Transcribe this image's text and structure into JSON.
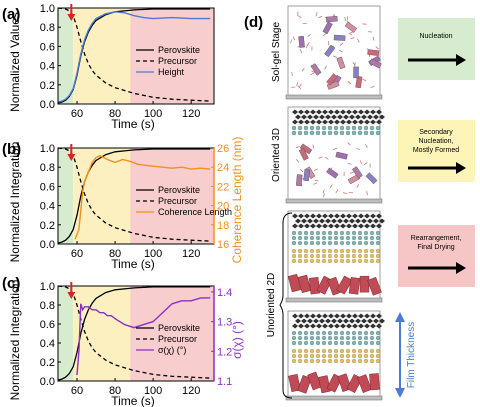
{
  "panels": {
    "a": {
      "label": "(a)",
      "xlabel": "Time (s)",
      "ylabel": "Normalized Values",
      "xticks": [
        "60",
        "80",
        "100",
        "120"
      ],
      "yticks": [
        "0.0",
        "0.2",
        "0.4",
        "0.6",
        "0.8",
        "1.0"
      ],
      "legend": [
        "Perovskite",
        "Precursor",
        "Height"
      ]
    },
    "b": {
      "label": "(b)",
      "xlabel": "Time (s)",
      "ylabel": "Normalized Integration",
      "y2label": "Coherence Length (nm)",
      "xticks": [
        "60",
        "80",
        "100",
        "120"
      ],
      "yticks": [
        "0.0",
        "0.2",
        "0.4",
        "0.6",
        "0.8",
        "1.0"
      ],
      "y2ticks": [
        "16",
        "18",
        "20",
        "22",
        "24",
        "26"
      ],
      "legend": [
        "Perovskite",
        "Precursor",
        "Coherence Length"
      ]
    },
    "c": {
      "label": "(c)",
      "xlabel": "Time (s)",
      "ylabel": "Normalized Integration",
      "y2label": "σ(χ) (°)",
      "xticks": [
        "60",
        "80",
        "100",
        "120"
      ],
      "yticks": [
        "0.0",
        "0.2",
        "0.4",
        "0.6",
        "0.8",
        "1.0"
      ],
      "y2ticks": [
        "1.1",
        "1.2",
        "1.3",
        "1.4"
      ],
      "legend": [
        "Perovskite",
        "Precursor",
        "σ(χ) (°)"
      ]
    },
    "d": {
      "label": "(d)",
      "stages": [
        {
          "side": "Sol-gel Stage",
          "box": [
            "Nucleation"
          ],
          "color": "#d7ecce"
        },
        {
          "side": "Oriented 3D",
          "box": [
            "Secondary",
            "Nucleation,",
            "Mostly Formed"
          ],
          "color": "#fdf5b8"
        },
        {
          "side": "Unoriented 2D",
          "box": [
            "Rearrangement,",
            "Final Drying"
          ],
          "color": "#f6c5c5"
        }
      ],
      "thickness_label": "Film Thickness"
    }
  },
  "colors": {
    "perovskite": "#000000",
    "height": "#4a7cd6",
    "coherence": "#f0901e",
    "sigma": "#8c2fc9",
    "marker": "#e0201c",
    "region_green": "#d7ecce",
    "region_yellow": "#fdf0c0",
    "region_red": "#f8cdcd"
  },
  "chart_data": [
    {
      "type": "line",
      "panel": "a",
      "xlim": [
        50,
        132
      ],
      "ylim": [
        0,
        1
      ],
      "marker_x": 57,
      "regions": [
        [
          50,
          58,
          "green"
        ],
        [
          58,
          88,
          "yellow"
        ],
        [
          88,
          132,
          "red"
        ]
      ],
      "series": [
        {
          "name": "Perovskite",
          "style": "solid",
          "x": [
            50,
            52,
            54,
            56,
            58,
            60,
            62,
            64,
            66,
            68,
            70,
            75,
            80,
            90,
            100,
            110,
            120,
            130
          ],
          "y": [
            0.01,
            0.02,
            0.04,
            0.08,
            0.15,
            0.3,
            0.5,
            0.65,
            0.75,
            0.82,
            0.87,
            0.93,
            0.96,
            0.98,
            0.99,
            0.99,
            0.99,
            0.99
          ]
        },
        {
          "name": "Precursor",
          "style": "dashed",
          "x": [
            50,
            54,
            56,
            58,
            60,
            62,
            64,
            66,
            68,
            70,
            75,
            80,
            90,
            100,
            110,
            120,
            130
          ],
          "y": [
            1.0,
            0.99,
            0.97,
            0.92,
            0.8,
            0.65,
            0.52,
            0.42,
            0.35,
            0.3,
            0.22,
            0.17,
            0.11,
            0.07,
            0.05,
            0.04,
            0.03
          ]
        },
        {
          "name": "Height",
          "style": "solid",
          "x": [
            50,
            52,
            54,
            56,
            58,
            60,
            62,
            64,
            66,
            68,
            70,
            75,
            80,
            85,
            90,
            95,
            100,
            110,
            120,
            130
          ],
          "y": [
            0.02,
            0.03,
            0.05,
            0.09,
            0.16,
            0.32,
            0.52,
            0.67,
            0.77,
            0.84,
            0.89,
            0.94,
            0.96,
            0.95,
            0.92,
            0.9,
            0.89,
            0.9,
            0.89,
            0.89
          ]
        }
      ]
    },
    {
      "type": "line",
      "panel": "b",
      "xlim": [
        50,
        132
      ],
      "ylim": [
        0,
        1
      ],
      "y2lim": [
        16,
        26
      ],
      "marker_x": 57,
      "regions": [
        [
          50,
          58,
          "green"
        ],
        [
          58,
          88,
          "yellow"
        ],
        [
          88,
          132,
          "red"
        ]
      ],
      "series": [
        {
          "name": "Perovskite",
          "style": "solid",
          "x": [
            50,
            52,
            54,
            56,
            58,
            60,
            62,
            64,
            66,
            68,
            70,
            75,
            80,
            90,
            100,
            110,
            120,
            130
          ],
          "y": [
            0.01,
            0.02,
            0.04,
            0.08,
            0.15,
            0.3,
            0.5,
            0.65,
            0.75,
            0.82,
            0.87,
            0.93,
            0.96,
            0.98,
            0.99,
            0.99,
            0.99,
            0.99
          ]
        },
        {
          "name": "Precursor",
          "style": "dashed",
          "x": [
            50,
            54,
            56,
            58,
            60,
            62,
            64,
            66,
            68,
            70,
            75,
            80,
            90,
            100,
            110,
            120,
            130
          ],
          "y": [
            1.0,
            0.99,
            0.97,
            0.92,
            0.8,
            0.65,
            0.52,
            0.42,
            0.35,
            0.3,
            0.22,
            0.17,
            0.11,
            0.07,
            0.05,
            0.04,
            0.03
          ]
        },
        {
          "name": "Coherence Length",
          "style": "solid",
          "axis": "y2",
          "x": [
            59,
            60,
            61,
            62,
            63,
            64,
            66,
            68,
            70,
            72,
            74,
            76,
            80,
            84,
            88,
            92,
            96,
            100,
            105,
            110,
            115,
            120,
            125,
            130
          ],
          "y": [
            16.5,
            17.0,
            17.5,
            19.5,
            21.5,
            22.5,
            23.5,
            24.5,
            25.0,
            25.2,
            25.0,
            24.8,
            24.5,
            24.8,
            24.6,
            24.3,
            24.2,
            24.1,
            24.0,
            23.9,
            24.0,
            23.8,
            23.9,
            23.8
          ]
        }
      ]
    },
    {
      "type": "line",
      "panel": "c",
      "xlim": [
        50,
        132
      ],
      "ylim": [
        0,
        1
      ],
      "y2lim": [
        1.1,
        1.42
      ],
      "marker_x": 57,
      "regions": [
        [
          50,
          58,
          "green"
        ],
        [
          58,
          88,
          "yellow"
        ],
        [
          88,
          132,
          "red"
        ]
      ],
      "series": [
        {
          "name": "Perovskite",
          "style": "solid",
          "x": [
            50,
            52,
            54,
            56,
            58,
            60,
            62,
            64,
            66,
            68,
            70,
            75,
            80,
            90,
            100,
            110,
            120,
            130
          ],
          "y": [
            0.01,
            0.02,
            0.04,
            0.08,
            0.15,
            0.3,
            0.5,
            0.65,
            0.75,
            0.82,
            0.87,
            0.93,
            0.96,
            0.98,
            0.99,
            0.99,
            0.99,
            0.99
          ]
        },
        {
          "name": "Precursor",
          "style": "dashed",
          "x": [
            50,
            54,
            56,
            58,
            60,
            62,
            64,
            66,
            68,
            70,
            75,
            80,
            90,
            100,
            110,
            120,
            130
          ],
          "y": [
            1.0,
            0.99,
            0.97,
            0.92,
            0.8,
            0.65,
            0.52,
            0.42,
            0.35,
            0.3,
            0.22,
            0.17,
            0.11,
            0.07,
            0.05,
            0.04,
            0.03
          ]
        },
        {
          "name": "σ(χ) (°)",
          "style": "solid",
          "axis": "y2",
          "x": [
            60,
            61,
            62,
            63,
            64,
            66,
            68,
            70,
            72,
            74,
            76,
            78,
            80,
            85,
            90,
            95,
            100,
            105,
            110,
            115,
            120,
            125,
            130
          ],
          "y": [
            1.12,
            1.2,
            1.36,
            1.34,
            1.35,
            1.35,
            1.34,
            1.34,
            1.33,
            1.33,
            1.32,
            1.32,
            1.31,
            1.29,
            1.28,
            1.29,
            1.3,
            1.33,
            1.36,
            1.37,
            1.37,
            1.38,
            1.38
          ]
        }
      ]
    }
  ]
}
